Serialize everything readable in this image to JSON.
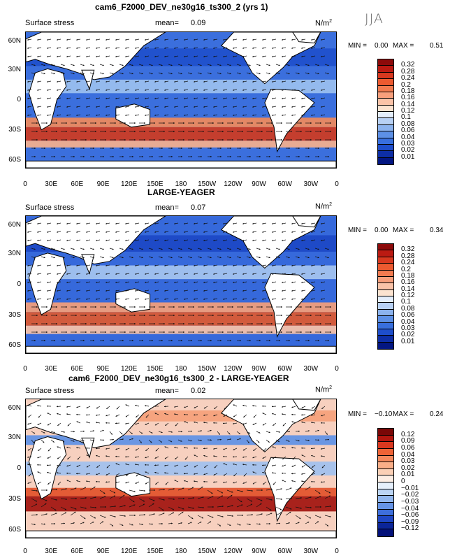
{
  "header": {
    "title": "cam6_F2000_DEV_ne30g16_ts300_2 (yrs 1)",
    "season": "JJA"
  },
  "axes": {
    "lat_labels": [
      "60N",
      "30N",
      "0",
      "30S",
      "60S"
    ],
    "lon_labels": [
      "0",
      "30E",
      "60E",
      "90E",
      "120E",
      "150E",
      "180",
      "150W",
      "120W",
      "90W",
      "60W",
      "30W",
      "0"
    ]
  },
  "panels": [
    {
      "title": "cam6_F2000_DEV_ne30g16_ts300_2 (yrs 1)",
      "variable": "Surface stress",
      "mean_label": "mean=",
      "mean": "0.09",
      "units": "N/m",
      "units_exp": "2",
      "min_label": "MIN =",
      "min": "0.00",
      "max_label": "MAX =",
      "max": "0.51",
      "levels": [
        "0.32",
        "0.28",
        "0.24",
        "0.2",
        "0.18",
        "0.16",
        "0.14",
        "0.12",
        "0.1",
        "0.08",
        "0.06",
        "0.04",
        "0.03",
        "0.02",
        "0.01"
      ],
      "colors": [
        "#8c0a0a",
        "#bb1a12",
        "#d8381f",
        "#ec5a30",
        "#f27b50",
        "#f79f7c",
        "#fac3a8",
        "#fbe3d0",
        "#e4eefb",
        "#b8d1f4",
        "#8cb3ee",
        "#5d90e6",
        "#386fde",
        "#1e4ecb",
        "#0d2ea6",
        "#031682"
      ]
    },
    {
      "title": "LARGE-YEAGER",
      "variable": "Surface stress",
      "mean_label": "mean=",
      "mean": "0.07",
      "units": "N/m",
      "units_exp": "2",
      "min_label": "MIN =",
      "min": "0.00",
      "max_label": "MAX =",
      "max": "0.34",
      "levels": [
        "0.32",
        "0.28",
        "0.24",
        "0.2",
        "0.18",
        "0.16",
        "0.14",
        "0.12",
        "0.1",
        "0.08",
        "0.06",
        "0.04",
        "0.03",
        "0.02",
        "0.01"
      ],
      "colors": [
        "#8c0a0a",
        "#bb1a12",
        "#d8381f",
        "#ec5a30",
        "#f27b50",
        "#f79f7c",
        "#fac3a8",
        "#fbe3d0",
        "#e4eefb",
        "#b8d1f4",
        "#8cb3ee",
        "#5d90e6",
        "#386fde",
        "#1e4ecb",
        "#0d2ea6",
        "#031682"
      ]
    },
    {
      "title": "cam6_F2000_DEV_ne30g16_ts300_2 - LARGE-YEAGER",
      "variable": "Surface stress",
      "mean_label": "mean=",
      "mean": "0.02",
      "units": "N/m",
      "units_exp": "2",
      "min_label": "MIN =",
      "min": "−0.10",
      "max_label": "MAX =",
      "max": "0.24",
      "levels": [
        "0.12",
        "0.09",
        "0.06",
        "0.04",
        "0.03",
        "0.02",
        "0.01",
        "0",
        "−0.01",
        "−0.02",
        "−0.03",
        "−0.04",
        "−0.06",
        "−0.09",
        "−0.12"
      ],
      "colors": [
        "#7a0707",
        "#b3160f",
        "#d9381f",
        "#ee6336",
        "#f5895d",
        "#f9ae88",
        "#fbd0b6",
        "#fdeee4",
        "#e6f0fc",
        "#bcd5f5",
        "#92b7ee",
        "#6694e6",
        "#3e6fdc",
        "#1f47c4",
        "#0b2599",
        "#03117a"
      ]
    }
  ]
}
